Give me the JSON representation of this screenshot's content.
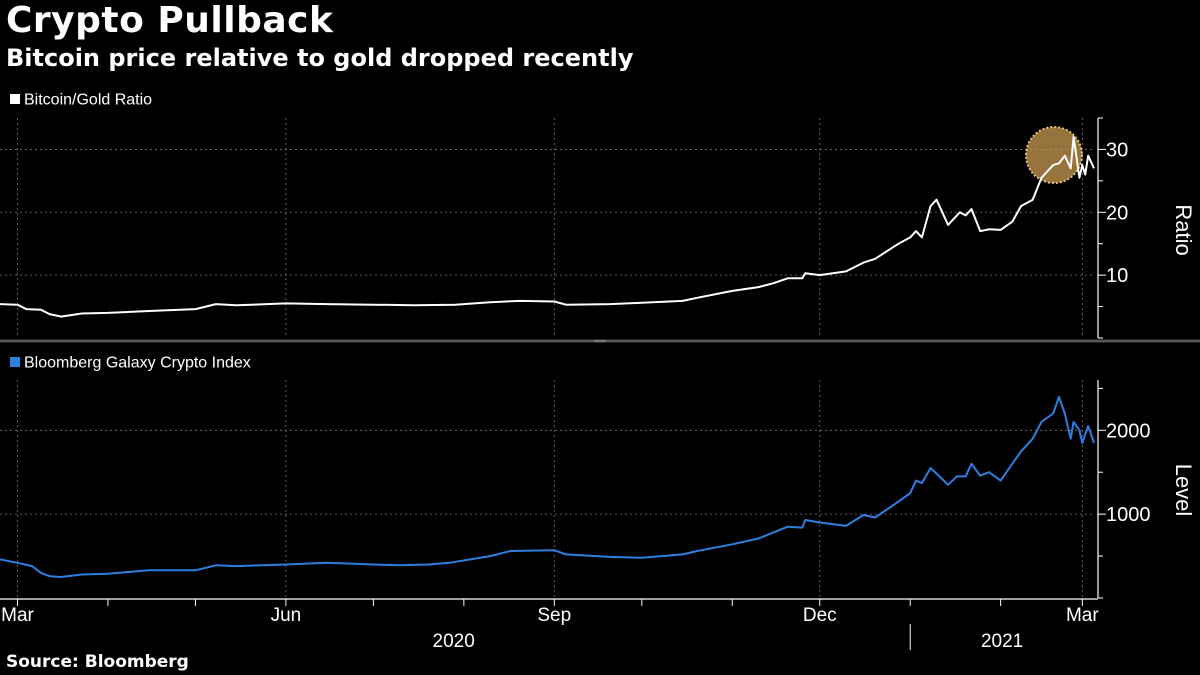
{
  "title": "Crypto Pullback",
  "subtitle": "Bitcoin price relative to gold dropped recently",
  "source": "Source: Bloomberg",
  "colors": {
    "background": "#000000",
    "ratio_line": "#ffffff",
    "index_line": "#2f7fe0",
    "highlight": "#c99a52",
    "grid": "#777777"
  },
  "chart_data": [
    {
      "type": "line",
      "title": "",
      "ylabel": "Ratio",
      "ylim": [
        0,
        35
      ],
      "yticks": [
        10,
        20,
        30
      ],
      "y_axis_position": "right",
      "grid": true,
      "highlight_note": "",
      "series": [
        {
          "name": "Bitcoin/Gold Ratio",
          "color": "#ffffff",
          "x": [
            "2020-02-24",
            "2020-03-01",
            "2020-03-04",
            "2020-03-09",
            "2020-03-12",
            "2020-03-16",
            "2020-03-23",
            "2020-04-01",
            "2020-04-15",
            "2020-05-01",
            "2020-05-08",
            "2020-05-15",
            "2020-06-01",
            "2020-06-15",
            "2020-07-01",
            "2020-07-15",
            "2020-07-29",
            "2020-08-10",
            "2020-08-20",
            "2020-09-01",
            "2020-09-05",
            "2020-09-20",
            "2020-10-01",
            "2020-10-15",
            "2020-10-20",
            "2020-11-01",
            "2020-11-10",
            "2020-11-15",
            "2020-11-20",
            "2020-11-25",
            "2020-11-26",
            "2020-12-01",
            "2020-12-10",
            "2020-12-16",
            "2020-12-20",
            "2020-12-28",
            "2021-01-01",
            "2021-01-03",
            "2021-01-05",
            "2021-01-08",
            "2021-01-10",
            "2021-01-14",
            "2021-01-18",
            "2021-01-20",
            "2021-01-22",
            "2021-01-25",
            "2021-01-28",
            "2021-02-01",
            "2021-02-05",
            "2021-02-08",
            "2021-02-12",
            "2021-02-15",
            "2021-02-19",
            "2021-02-21",
            "2021-02-23",
            "2021-02-25",
            "2021-02-26",
            "2021-02-28",
            "2021-03-01",
            "2021-03-02",
            "2021-03-03",
            "2021-03-05"
          ],
          "y": [
            5.4,
            5.3,
            4.6,
            4.5,
            3.8,
            3.4,
            3.9,
            4.0,
            4.3,
            4.6,
            5.4,
            5.2,
            5.5,
            5.4,
            5.3,
            5.2,
            5.3,
            5.7,
            5.9,
            5.8,
            5.3,
            5.4,
            5.6,
            5.9,
            6.4,
            7.5,
            8.1,
            8.7,
            9.5,
            9.5,
            10.3,
            10.0,
            10.6,
            12.0,
            12.6,
            15.0,
            16.0,
            17.0,
            16.0,
            21.0,
            22.0,
            18.0,
            20.0,
            19.5,
            20.5,
            17.0,
            17.3,
            17.2,
            18.5,
            21.0,
            22.0,
            25.5,
            27.5,
            27.8,
            29.0,
            27.0,
            32.0,
            25.5,
            27.5,
            26.0,
            29.0,
            27.0
          ]
        }
      ]
    },
    {
      "type": "line",
      "title": "",
      "ylabel": "Level",
      "ylim": [
        0,
        2600
      ],
      "yticks": [
        1000,
        2000
      ],
      "y_axis_position": "right",
      "grid": true,
      "series": [
        {
          "name": "Bloomberg Galaxy Crypto Index",
          "color": "#2f7fe0",
          "x": [
            "2020-02-24",
            "2020-03-01",
            "2020-03-06",
            "2020-03-09",
            "2020-03-12",
            "2020-03-16",
            "2020-03-23",
            "2020-04-01",
            "2020-04-15",
            "2020-05-01",
            "2020-05-08",
            "2020-05-15",
            "2020-06-01",
            "2020-06-15",
            "2020-07-01",
            "2020-07-10",
            "2020-07-20",
            "2020-07-27",
            "2020-08-10",
            "2020-08-17",
            "2020-09-01",
            "2020-09-05",
            "2020-09-20",
            "2020-10-01",
            "2020-10-15",
            "2020-10-20",
            "2020-11-01",
            "2020-11-10",
            "2020-11-15",
            "2020-11-20",
            "2020-11-25",
            "2020-11-26",
            "2020-12-01",
            "2020-12-10",
            "2020-12-16",
            "2020-12-20",
            "2020-12-28",
            "2021-01-01",
            "2021-01-03",
            "2021-01-05",
            "2021-01-08",
            "2021-01-11",
            "2021-01-14",
            "2021-01-17",
            "2021-01-20",
            "2021-01-22",
            "2021-01-25",
            "2021-01-28",
            "2021-02-01",
            "2021-02-05",
            "2021-02-08",
            "2021-02-12",
            "2021-02-15",
            "2021-02-19",
            "2021-02-21",
            "2021-02-23",
            "2021-02-25",
            "2021-02-26",
            "2021-02-28",
            "2021-03-01",
            "2021-03-02",
            "2021-03-03",
            "2021-03-05"
          ],
          "y": [
            460,
            420,
            380,
            300,
            260,
            250,
            280,
            290,
            330,
            330,
            390,
            380,
            400,
            420,
            400,
            390,
            400,
            420,
            500,
            560,
            570,
            520,
            490,
            480,
            520,
            560,
            640,
            710,
            780,
            850,
            840,
            930,
            900,
            860,
            990,
            960,
            1150,
            1250,
            1400,
            1370,
            1550,
            1450,
            1350,
            1450,
            1450,
            1600,
            1460,
            1500,
            1400,
            1600,
            1750,
            1900,
            2100,
            2200,
            2400,
            2200,
            1900,
            2100,
            2000,
            1850,
            1950,
            2050,
            1850
          ]
        }
      ]
    }
  ],
  "x_axis": {
    "month_labels": [
      "Mar",
      "Jun",
      "Sep",
      "Dec",
      "Mar"
    ],
    "month_dates": [
      "2020-03-01",
      "2020-06-01",
      "2020-09-01",
      "2020-12-01",
      "2021-03-01"
    ],
    "year_labels": [
      "2020",
      "2021"
    ],
    "year_ranges": [
      [
        "2020-02-24",
        "2020-12-31"
      ],
      [
        "2021-01-01",
        "2021-03-05"
      ]
    ]
  }
}
